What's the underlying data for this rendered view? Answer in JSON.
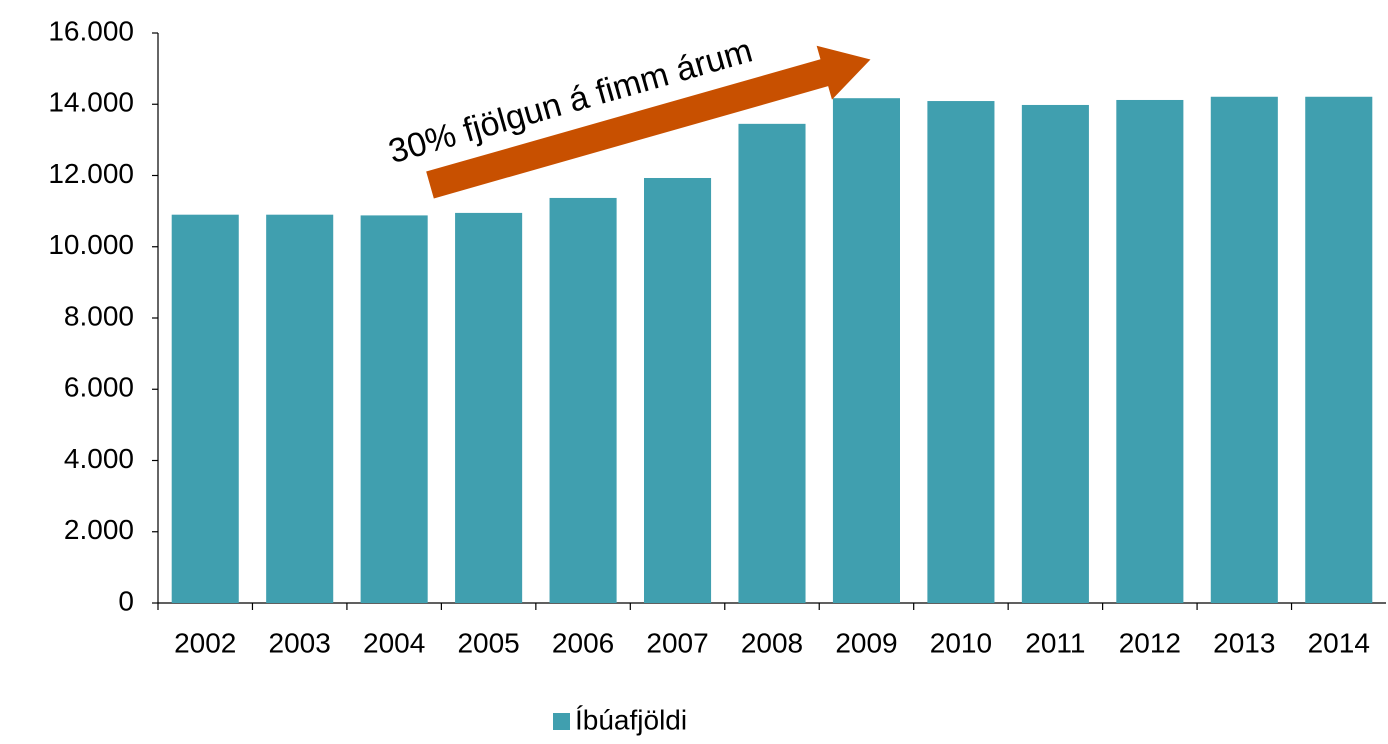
{
  "chart_data": {
    "type": "bar",
    "annotation": "30% fjölgun á fimm árum",
    "categories": [
      "2002",
      "2003",
      "2004",
      "2005",
      "2006",
      "2007",
      "2008",
      "2009",
      "2010",
      "2011",
      "2012",
      "2013",
      "2014"
    ],
    "series": [
      {
        "name": "Íbúafjöldi",
        "color": "#409faf",
        "values": [
          10900,
          10900,
          10880,
          10950,
          11370,
          11930,
          13450,
          14170,
          14090,
          13980,
          14120,
          14210,
          14210
        ]
      }
    ],
    "ylim": [
      0,
      16000
    ],
    "yticks": [
      0,
      {
        "value": 2000,
        "label": "2.000"
      },
      {
        "value": 4000,
        "label": "4.000"
      },
      {
        "value": 6000,
        "label": "6.000"
      },
      {
        "value": 8000,
        "label": "8.000"
      },
      {
        "value": 10000,
        "label": "10.000"
      },
      {
        "value": 12000,
        "label": "12.000"
      },
      {
        "value": 14000,
        "label": "14.000"
      },
      {
        "value": 16000,
        "label": "16.000"
      }
    ],
    "annotation_color": "#c85000",
    "legend": "bottom"
  }
}
